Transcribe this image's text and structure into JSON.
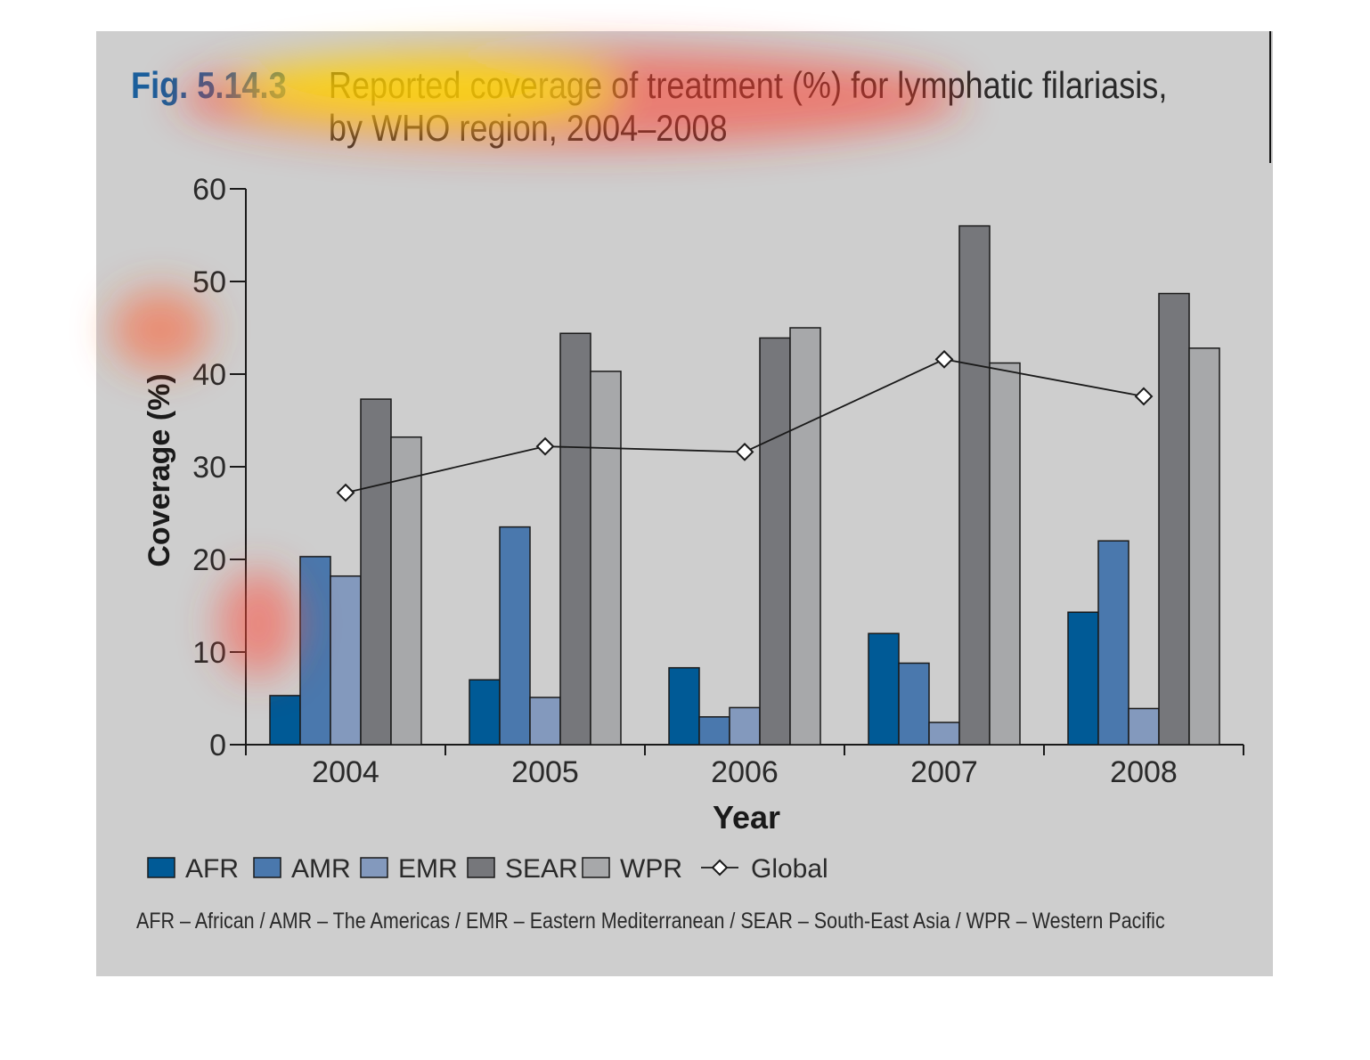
{
  "figure": {
    "label": "Fig. 5.14.3",
    "title_line1": "Reported coverage of treatment (%) for lymphatic filariasis,",
    "title_line2": "by WHO region, 2004–2008",
    "footnote": "AFR – African / AMR – The Americas / EMR – Eastern Mediterranean / SEAR – South-East Asia / WPR – Western Pacific"
  },
  "chart_data": {
    "type": "bar",
    "title": "Reported coverage of treatment (%) for lymphatic filariasis, by WHO region, 2004–2008",
    "xlabel": "Year",
    "ylabel": "Coverage (%)",
    "ylim": [
      0,
      60
    ],
    "yticks": [
      "0",
      "10",
      "20",
      "30",
      "40",
      "50",
      "60"
    ],
    "categories": [
      "2004",
      "2005",
      "2006",
      "2007",
      "2008"
    ],
    "series": [
      {
        "name": "AFR",
        "values": [
          5.3,
          7.0,
          8.3,
          12.0,
          14.3
        ],
        "color": "#005a96"
      },
      {
        "name": "AMR",
        "values": [
          20.3,
          23.5,
          3.0,
          8.8,
          22.0
        ],
        "color": "#4a78ad"
      },
      {
        "name": "EMR",
        "values": [
          18.2,
          5.1,
          4.0,
          2.4,
          3.9
        ],
        "color": "#8399bd"
      },
      {
        "name": "SEAR",
        "values": [
          37.3,
          44.4,
          43.9,
          56.0,
          48.7
        ],
        "color": "#76777b"
      },
      {
        "name": "WPR",
        "values": [
          33.2,
          40.3,
          45.0,
          41.2,
          42.8
        ],
        "color": "#a7a8aa"
      }
    ],
    "line_series": {
      "name": "Global",
      "values": [
        27.2,
        32.2,
        31.6,
        41.6,
        37.6
      ]
    },
    "legend_position": "bottom",
    "grid": false
  }
}
